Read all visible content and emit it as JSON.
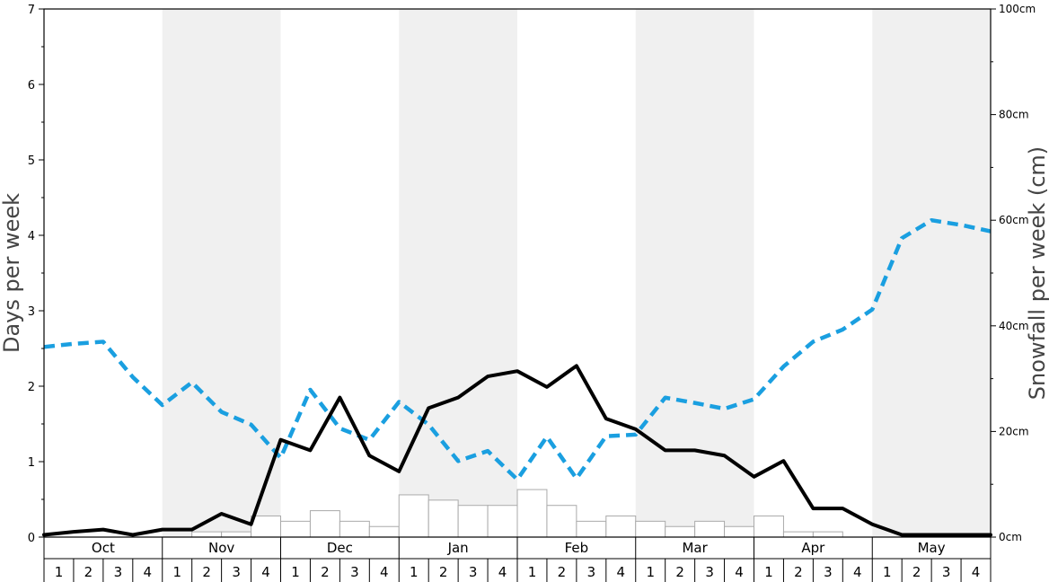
{
  "chart_data": {
    "type": "line",
    "ylabel_left": "Days per week",
    "ylabel_right": "Snowfall per week (cm)",
    "ylim_left": [
      0,
      7
    ],
    "ylim_right": [
      0,
      100
    ],
    "left_ticks": [
      "0",
      "1",
      "2",
      "3",
      "4",
      "5",
      "6",
      "7"
    ],
    "right_ticks": [
      "0cm",
      "20cm",
      "40cm",
      "60cm",
      "80cm",
      "100cm"
    ],
    "months": [
      "Oct",
      "Nov",
      "Dec",
      "Jan",
      "Feb",
      "Mar",
      "Apr",
      "May"
    ],
    "weeks": [
      "1",
      "2",
      "3",
      "4"
    ],
    "colors": {
      "days_line": "#000000",
      "snow_line": "#1a9fe0",
      "bars_fill": "#ffffff",
      "bars_stroke": "#aaaaaa",
      "shade": "#f0f0f0"
    },
    "series": [
      {
        "key": "days",
        "axis": "left",
        "style": "solid",
        "values": [
          0.03,
          0.07,
          0.1,
          0.03,
          0.1,
          0.1,
          0.31,
          0.17,
          1.29,
          1.15,
          1.85,
          1.08,
          0.87,
          1.71,
          1.85,
          2.13,
          2.2,
          1.99,
          2.27,
          1.57,
          1.43,
          1.15,
          1.15,
          1.08,
          0.8,
          1.01,
          0.38,
          0.38,
          0.17,
          0.03,
          0.03,
          0.03,
          0.03
        ]
      },
      {
        "key": "snow_line",
        "axis": "right",
        "style": "dashed",
        "values": [
          36,
          36.6,
          37,
          30.3,
          25,
          29.3,
          23.7,
          21.3,
          15,
          27.9,
          20.6,
          18.4,
          25.6,
          21.3,
          14.4,
          16.3,
          10.9,
          19,
          11.1,
          19.1,
          19.4,
          26.4,
          25.4,
          24.3,
          26.1,
          32.3,
          37,
          39.3,
          43.1,
          56.6,
          60,
          59.1,
          57.9
        ]
      },
      {
        "key": "snow_bars",
        "axis": "right",
        "style": "bars",
        "values": [
          0,
          0,
          0,
          0,
          0,
          1,
          1,
          4,
          3,
          5,
          3,
          2,
          8,
          7,
          6,
          6,
          9,
          6,
          3,
          4,
          3,
          2,
          3,
          2,
          4,
          1,
          1,
          0,
          0,
          0,
          0,
          0
        ]
      }
    ]
  }
}
